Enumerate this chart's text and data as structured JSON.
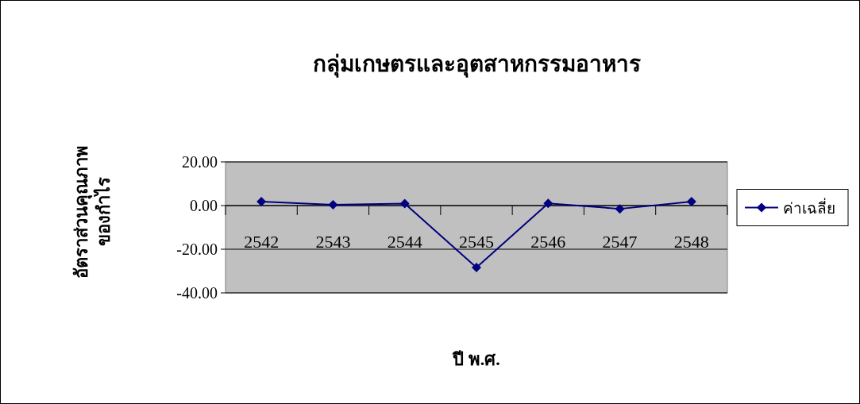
{
  "chart_data": {
    "type": "line",
    "title": "กลุ่มเกษตรและอุตสาหกรรมอาหาร",
    "xlabel": "ปี พ.ศ.",
    "ylabel": "อัตราส่วนคุณภาพ\nของกำไร",
    "categories": [
      "2542",
      "2543",
      "2544",
      "2545",
      "2546",
      "2547",
      "2548"
    ],
    "series": [
      {
        "name": "ค่าเฉลี่ย",
        "color": "#000080",
        "values": [
          1.8,
          0.4,
          0.9,
          -28.4,
          1.0,
          -1.5,
          1.8
        ]
      }
    ],
    "ylim": [
      -40,
      20
    ],
    "yticks": [
      {
        "value": -40,
        "label": "-40.00"
      },
      {
        "value": -20,
        "label": "-20.00"
      },
      {
        "value": 0,
        "label": "0.00"
      },
      {
        "value": 20,
        "label": "20.00"
      }
    ],
    "grid": "y",
    "legend": "right",
    "marker": "diamond",
    "line_style": "solid"
  }
}
